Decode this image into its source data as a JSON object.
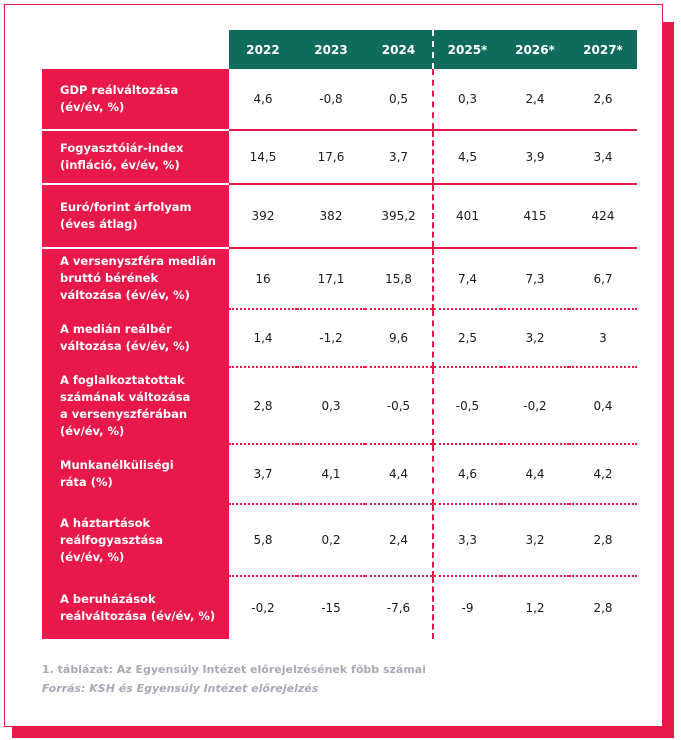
{
  "table": {
    "years": [
      "2022",
      "2023",
      "2024",
      "2025*",
      "2026*",
      "2027*"
    ],
    "rows": [
      {
        "label": [
          "GDP reálváltozása",
          "(év/év, %)"
        ],
        "values": [
          "4,6",
          "-0,8",
          "0,5",
          "0,3",
          "2,4",
          "2,6"
        ]
      },
      {
        "label": [
          "Fogyasztóiár-index",
          "(infláció, év/év, %)"
        ],
        "values": [
          "14,5",
          "17,6",
          "3,7",
          "4,5",
          "3,9",
          "3,4"
        ]
      },
      {
        "label": [
          "Euró/forint árfolyam",
          "(éves átlag)"
        ],
        "values": [
          "392",
          "382",
          "395,2",
          "401",
          "415",
          "424"
        ]
      },
      {
        "label": [
          "A versenyszféra medián",
          "bruttó bérének",
          "változása (év/év, %)"
        ],
        "values": [
          "16",
          "17,1",
          "15,8",
          "7,4",
          "7,3",
          "6,7"
        ]
      },
      {
        "label": [
          "A medián reálbér",
          "változása (év/év, %)"
        ],
        "values": [
          "1,4",
          "-1,2",
          "9,6",
          "2,5",
          "3,2",
          "3"
        ]
      },
      {
        "label": [
          "A foglalkoztatottak",
          "számának változása",
          "a versenyszférában",
          "(év/év, %)"
        ],
        "values": [
          "2,8",
          "0,3",
          "-0,5",
          "-0,5",
          "-0,2",
          "0,4"
        ]
      },
      {
        "label": [
          "Munkanélküliségi",
          "ráta (%)"
        ],
        "values": [
          "3,7",
          "4,1",
          "4,4",
          "4,6",
          "4,4",
          "4,2"
        ]
      },
      {
        "label": [
          "A háztartások",
          "reálfogyasztása",
          "(év/év, %)"
        ],
        "values": [
          "5,8",
          "0,2",
          "2,4",
          "3,3",
          "3,2",
          "2,8"
        ]
      },
      {
        "label": [
          "A beruházások",
          "reálváltozása (év/év, %)"
        ],
        "values": [
          "-0,2",
          "-15",
          "-7,6",
          "-9",
          "1,2",
          "2,8"
        ]
      }
    ]
  },
  "caption": "1. táblázat: Az Egyensúly Intézet előrejelzésének főbb számai",
  "source": "Forrás: KSH és Egyensúly Intézet előrejelzés",
  "colors": {
    "accent": "#e8194a",
    "header": "#0f6b5c",
    "muted_text": "#a9a9b5"
  }
}
